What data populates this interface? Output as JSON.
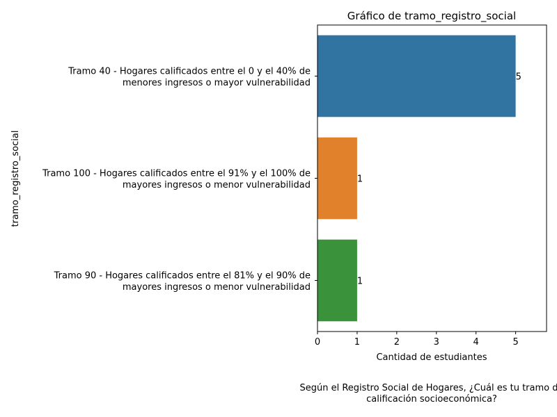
{
  "chart_data": {
    "type": "bar",
    "orientation": "horizontal",
    "title": "Gráfico de tramo_registro_social",
    "xlabel": "Cantidad de estudiantes",
    "ylabel": "tramo_registro_social",
    "xlim": [
      0,
      5.78
    ],
    "xticks": [
      0,
      1,
      2,
      3,
      4,
      5
    ],
    "grid": false,
    "categories": [
      [
        "Tramo 40 - Hogares calificados entre el 0 y el 40% de",
        "menores ingresos o mayor vulnerabilidad"
      ],
      [
        "Tramo 100 - Hogares calificados entre el 91% y el 100% de",
        "mayores ingresos o menor vulnerabilidad"
      ],
      [
        "Tramo 90 - Hogares calificados entre el 81% y el 90% de",
        "mayores ingresos o menor vulnerabilidad"
      ]
    ],
    "values": [
      5,
      1,
      1
    ],
    "colors": [
      "#3274a1",
      "#e1812c",
      "#3a923a"
    ],
    "footnote": [
      "Según el Registro Social de Hogares, ¿Cuál es tu tramo de",
      "calificación socioeconómica?"
    ]
  }
}
